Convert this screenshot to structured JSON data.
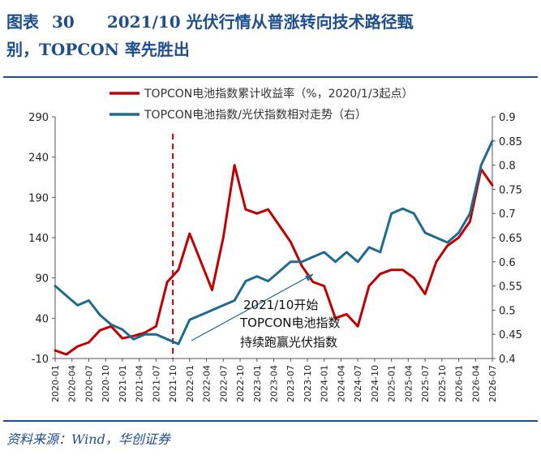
{
  "header": {
    "figure_label": "图表",
    "figure_number": "30",
    "title_line1": "2021/10 光伏行情从普涨转向技术路径甄",
    "title_line2": "别，TOPCON 率先胜出"
  },
  "source": "资料来源：Wind，华创证券",
  "colors": {
    "title": "#1f4e8c",
    "series_red": "#c00000",
    "series_blue": "#1f6a8f",
    "annotation_line": "#c00000"
  },
  "chart_data": {
    "type": "line",
    "legend_position": "top",
    "grid": false,
    "x_axis": {
      "tick_labels": [
        "2020-01",
        "2020-04",
        "2020-07",
        "2020-10",
        "2021-01",
        "2021-04",
        "2021-07",
        "2021-10",
        "2022-01",
        "2022-04",
        "2022-07",
        "2022-10",
        "2023-01",
        "2023-04",
        "2023-07",
        "2023-10",
        "2024-01",
        "2024-04",
        "2024-07",
        "2024-10",
        "2025-01",
        "2025-04",
        "2025-07",
        "2025-10",
        "2026-01",
        "2026-04",
        "2026-07"
      ],
      "range": [
        "2020-01",
        "2026-07"
      ]
    },
    "y_left": {
      "ticks": [
        -10,
        40,
        90,
        140,
        190,
        240,
        290
      ],
      "range": [
        -10,
        290
      ]
    },
    "y_right": {
      "ticks": [
        0.4,
        0.45,
        0.5,
        0.55,
        0.6,
        0.65,
        0.7,
        0.75,
        0.8,
        0.85,
        0.9
      ],
      "range": [
        0.4,
        0.9
      ]
    },
    "series": [
      {
        "name": "TOPCON电池指数累计收益率（%，2020/1/3起点）",
        "axis": "left",
        "x": [
          "2020-01",
          "2020-03",
          "2020-05",
          "2020-07",
          "2020-09",
          "2020-11",
          "2021-01",
          "2021-03",
          "2021-05",
          "2021-07",
          "2021-09",
          "2021-11",
          "2022-01",
          "2022-03",
          "2022-05",
          "2022-07",
          "2022-09",
          "2022-11",
          "2023-01",
          "2023-03",
          "2023-05",
          "2023-07",
          "2023-09",
          "2023-11",
          "2024-01",
          "2024-03",
          "2024-05",
          "2024-07",
          "2024-09",
          "2024-11",
          "2025-01",
          "2025-03",
          "2025-05",
          "2025-07",
          "2025-09",
          "2025-11",
          "2026-01",
          "2026-03",
          "2026-05",
          "2026-07"
        ],
        "values": [
          0,
          -5,
          5,
          10,
          25,
          30,
          15,
          18,
          22,
          30,
          85,
          100,
          145,
          110,
          75,
          140,
          230,
          175,
          170,
          175,
          155,
          135,
          105,
          85,
          80,
          40,
          45,
          30,
          80,
          95,
          100,
          100,
          90,
          70,
          110,
          130,
          140,
          160,
          225,
          205
        ]
      },
      {
        "name": "TOPCON电池指数/光伏指数相对走势（右）",
        "axis": "right",
        "x": [
          "2020-01",
          "2020-03",
          "2020-05",
          "2020-07",
          "2020-09",
          "2020-11",
          "2021-01",
          "2021-03",
          "2021-05",
          "2021-07",
          "2021-09",
          "2021-11",
          "2022-01",
          "2022-03",
          "2022-05",
          "2022-07",
          "2022-09",
          "2022-11",
          "2023-01",
          "2023-03",
          "2023-05",
          "2023-07",
          "2023-09",
          "2023-11",
          "2024-01",
          "2024-03",
          "2024-05",
          "2024-07",
          "2024-09",
          "2024-11",
          "2025-01",
          "2025-03",
          "2025-05",
          "2025-07",
          "2025-09",
          "2025-11",
          "2026-01",
          "2026-03",
          "2026-05",
          "2026-07"
        ],
        "values": [
          0.55,
          0.53,
          0.51,
          0.52,
          0.49,
          0.47,
          0.46,
          0.44,
          0.45,
          0.45,
          0.44,
          0.43,
          0.48,
          0.49,
          0.5,
          0.51,
          0.52,
          0.56,
          0.57,
          0.56,
          0.58,
          0.6,
          0.6,
          0.61,
          0.62,
          0.6,
          0.62,
          0.6,
          0.63,
          0.62,
          0.7,
          0.71,
          0.7,
          0.66,
          0.65,
          0.64,
          0.66,
          0.7,
          0.8,
          0.85
        ]
      }
    ],
    "vertical_marker": "2021-10",
    "annotation": [
      "2021/10开始",
      "TOPCON电池指数",
      "持续跑赢光伏指数"
    ]
  }
}
